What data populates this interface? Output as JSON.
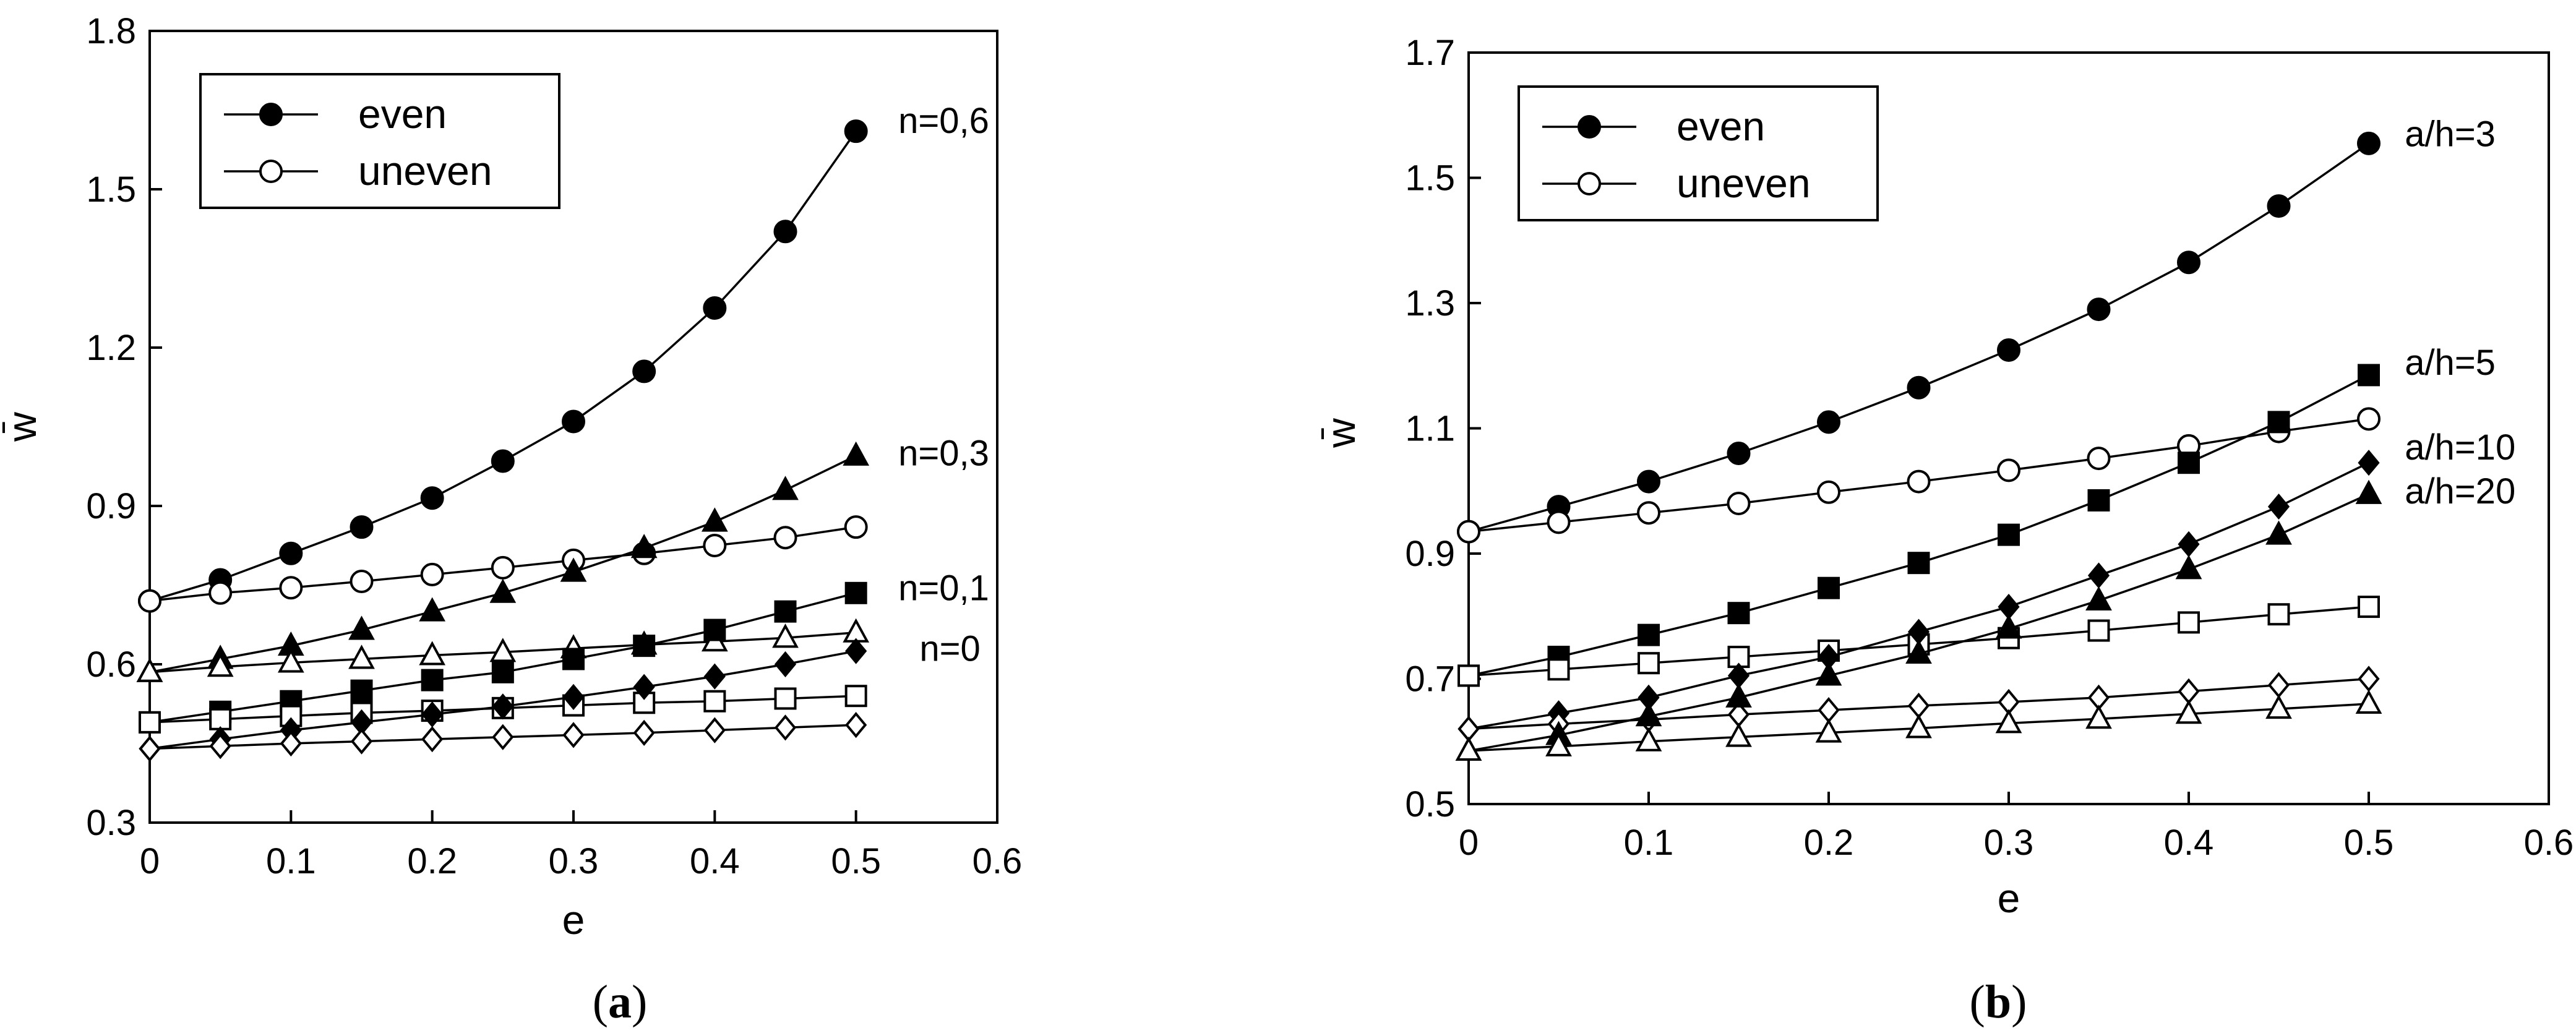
{
  "chart_data": [
    {
      "type": "line",
      "caption": "a",
      "xlabel": "e",
      "ylabel": "w̄",
      "xlim": [
        0,
        0.6
      ],
      "ylim": [
        0.3,
        1.8
      ],
      "xticks": [
        0,
        0.1,
        0.2,
        0.3,
        0.4,
        0.5,
        0.6
      ],
      "yticks": [
        0.3,
        0.6,
        0.9,
        1.2,
        1.5,
        1.8
      ],
      "xtick_labels": [
        "0",
        "0.1",
        "0.2",
        "0.3",
        "0.4",
        "0.5",
        "0.6"
      ],
      "ytick_labels": [
        "0.3",
        "0.6",
        "0.9",
        "1.2",
        "1.5",
        "1.8"
      ],
      "legend": [
        {
          "label": "even",
          "marker": "circle",
          "filled": true
        },
        {
          "label": "uneven",
          "marker": "circle",
          "filled": false
        }
      ],
      "x": [
        0,
        0.05,
        0.1,
        0.15,
        0.2,
        0.25,
        0.3,
        0.35,
        0.4,
        0.45,
        0.5
      ],
      "series": [
        {
          "name": "n=0.6 even",
          "marker": "circle",
          "filled": true,
          "values": [
            0.72,
            0.76,
            0.81,
            0.86,
            0.915,
            0.985,
            1.06,
            1.155,
            1.275,
            1.42,
            1.61
          ]
        },
        {
          "name": "n=0.6 uneven",
          "marker": "circle",
          "filled": false,
          "values": [
            0.72,
            0.735,
            0.745,
            0.757,
            0.77,
            0.783,
            0.797,
            0.81,
            0.825,
            0.84,
            0.86
          ]
        },
        {
          "name": "n=0.3 even",
          "marker": "triangle",
          "filled": true,
          "values": [
            0.585,
            0.61,
            0.635,
            0.665,
            0.7,
            0.735,
            0.775,
            0.82,
            0.87,
            0.93,
            0.995
          ]
        },
        {
          "name": "n=0.3 uneven",
          "marker": "triangle",
          "filled": false,
          "values": [
            0.585,
            0.595,
            0.603,
            0.61,
            0.617,
            0.623,
            0.63,
            0.637,
            0.643,
            0.65,
            0.66
          ]
        },
        {
          "name": "n=0.1 even",
          "marker": "square",
          "filled": true,
          "values": [
            0.49,
            0.51,
            0.53,
            0.55,
            0.57,
            0.585,
            0.61,
            0.635,
            0.665,
            0.7,
            0.735
          ]
        },
        {
          "name": "n=0.1 uneven",
          "marker": "square",
          "filled": false,
          "values": [
            0.49,
            0.496,
            0.502,
            0.508,
            0.512,
            0.517,
            0.522,
            0.527,
            0.53,
            0.535,
            0.54
          ]
        },
        {
          "name": "n=0 even",
          "marker": "diamond",
          "filled": true,
          "values": [
            0.44,
            0.458,
            0.475,
            0.49,
            0.505,
            0.52,
            0.538,
            0.557,
            0.577,
            0.6,
            0.625
          ]
        },
        {
          "name": "n=0 uneven",
          "marker": "diamond",
          "filled": false,
          "values": [
            0.44,
            0.445,
            0.45,
            0.454,
            0.458,
            0.462,
            0.466,
            0.47,
            0.475,
            0.48,
            0.485
          ]
        }
      ],
      "annotations": [
        {
          "text": "n=0,6",
          "x": 0.53,
          "y": 1.63
        },
        {
          "text": "n=0,3",
          "x": 0.53,
          "y": 1.0
        },
        {
          "text": "n=0,1",
          "x": 0.53,
          "y": 0.745
        },
        {
          "text": "n=0",
          "x": 0.545,
          "y": 0.63
        }
      ]
    },
    {
      "type": "line",
      "caption": "b",
      "xlabel": "e",
      "ylabel": "w̄",
      "xlim": [
        0,
        0.6
      ],
      "ylim": [
        0.5,
        1.7
      ],
      "xticks": [
        0,
        0.1,
        0.2,
        0.3,
        0.4,
        0.5,
        0.6
      ],
      "yticks": [
        0.5,
        0.7,
        0.9,
        1.1,
        1.3,
        1.5,
        1.7
      ],
      "xtick_labels": [
        "0",
        "0.1",
        "0.2",
        "0.3",
        "0.4",
        "0.5",
        "0.6"
      ],
      "ytick_labels": [
        "0.5",
        "0.7",
        "0.9",
        "1.1",
        "1.3",
        "1.5",
        "1.7"
      ],
      "legend": [
        {
          "label": "even",
          "marker": "circle",
          "filled": true
        },
        {
          "label": "uneven",
          "marker": "circle",
          "filled": false
        }
      ],
      "x": [
        0,
        0.05,
        0.1,
        0.15,
        0.2,
        0.25,
        0.3,
        0.35,
        0.4,
        0.45,
        0.5
      ],
      "series": [
        {
          "name": "a/h=3 even",
          "marker": "circle",
          "filled": true,
          "values": [
            0.935,
            0.975,
            1.015,
            1.06,
            1.11,
            1.165,
            1.225,
            1.29,
            1.365,
            1.455,
            1.555
          ]
        },
        {
          "name": "a/h=3 uneven",
          "marker": "circle",
          "filled": false,
          "values": [
            0.935,
            0.95,
            0.965,
            0.98,
            0.998,
            1.015,
            1.033,
            1.052,
            1.072,
            1.095,
            1.115
          ]
        },
        {
          "name": "a/h=5 even",
          "marker": "square",
          "filled": true,
          "values": [
            0.705,
            0.735,
            0.77,
            0.805,
            0.845,
            0.885,
            0.93,
            0.985,
            1.045,
            1.11,
            1.185
          ]
        },
        {
          "name": "a/h=5 uneven",
          "marker": "square",
          "filled": false,
          "values": [
            0.705,
            0.715,
            0.725,
            0.735,
            0.745,
            0.755,
            0.765,
            0.777,
            0.79,
            0.803,
            0.815
          ]
        },
        {
          "name": "a/h=10 even",
          "marker": "diamond",
          "filled": true,
          "values": [
            0.62,
            0.645,
            0.67,
            0.705,
            0.735,
            0.775,
            0.815,
            0.865,
            0.915,
            0.975,
            1.045
          ]
        },
        {
          "name": "a/h=10 uneven",
          "marker": "diamond",
          "filled": false,
          "values": [
            0.62,
            0.628,
            0.635,
            0.643,
            0.65,
            0.657,
            0.663,
            0.67,
            0.68,
            0.69,
            0.7
          ]
        },
        {
          "name": "a/h=20 even",
          "marker": "triangle",
          "filled": true,
          "values": [
            0.585,
            0.61,
            0.64,
            0.67,
            0.705,
            0.74,
            0.78,
            0.825,
            0.875,
            0.93,
            0.995
          ]
        },
        {
          "name": "a/h=20 uneven",
          "marker": "triangle",
          "filled": false,
          "values": [
            0.585,
            0.592,
            0.6,
            0.607,
            0.614,
            0.621,
            0.629,
            0.636,
            0.644,
            0.652,
            0.66
          ]
        }
      ],
      "annotations": [
        {
          "text": "a/h=3",
          "x": 0.52,
          "y": 1.57
        },
        {
          "text": "a/h=5",
          "x": 0.52,
          "y": 1.205
        },
        {
          "text": "a/h=10",
          "x": 0.52,
          "y": 1.07
        },
        {
          "text": "a/h=20",
          "x": 0.52,
          "y": 1.0
        }
      ]
    }
  ]
}
